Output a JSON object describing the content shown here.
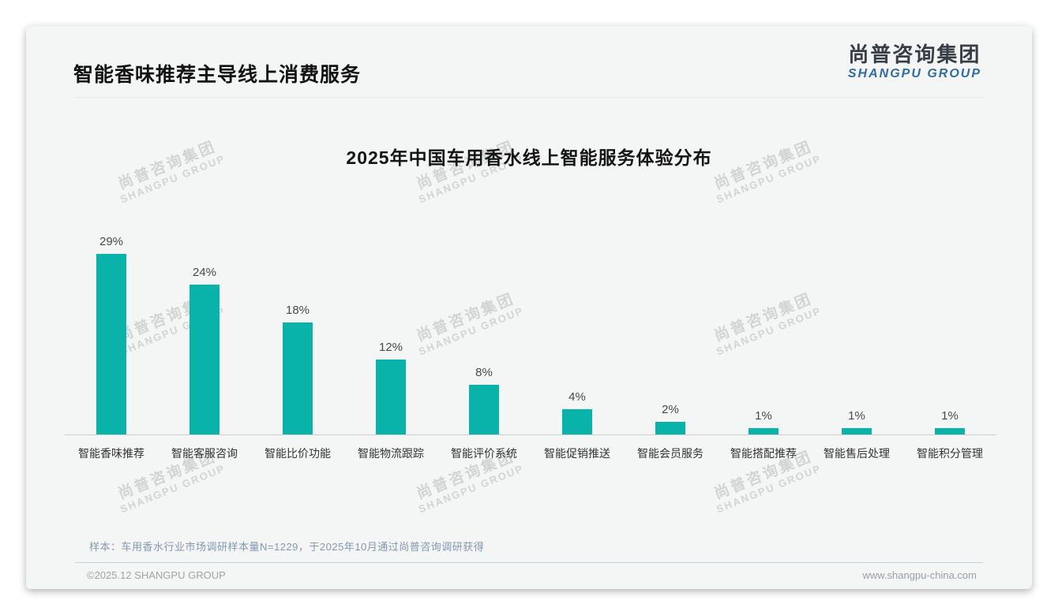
{
  "header": {
    "title": "智能香味推荐主导线上消费服务",
    "logo_cn": "尚普咨询集团",
    "logo_en": "SHANGPU GROUP"
  },
  "chart_data": {
    "type": "bar",
    "title": "2025年中国车用香水线上智能服务体验分布",
    "categories": [
      "智能香味推荐",
      "智能客服咨询",
      "智能比价功能",
      "智能物流跟踪",
      "智能评价系统",
      "智能促销推送",
      "智能会员服务",
      "智能搭配推荐",
      "智能售后处理",
      "智能积分管理"
    ],
    "values": [
      29,
      24,
      18,
      12,
      8,
      4,
      2,
      1,
      1,
      1
    ],
    "value_suffix": "%",
    "bar_color": "#0ab3aa",
    "ylim": [
      0,
      30
    ],
    "xlabel": "",
    "ylabel": "",
    "grid": false,
    "legend": "none",
    "value_labels_position": "above bars"
  },
  "watermark": {
    "line1": "尚普咨询集团",
    "line2": "SHANGPU GROUP"
  },
  "footnote": {
    "text": "样本：车用香水行业市场调研样本量N=1229，于2025年10月通过尚普咨询调研获得"
  },
  "footer": {
    "left": "©2025.12 SHANGPU GROUP",
    "right": "www.shangpu-china.com"
  },
  "colors": {
    "accent_teal": "#0ab3aa",
    "logo_blue": "#2e6ca6",
    "logo_dark": "#373e46",
    "note_blue_gray": "#8299b0",
    "axis_line": "#cccccc",
    "card_bg": "#f4f5f5"
  }
}
